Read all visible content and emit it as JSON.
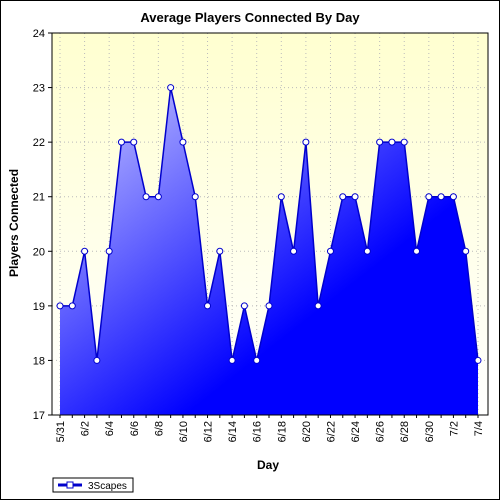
{
  "chart_data": {
    "type": "area",
    "title": "Average Players Connected By Day",
    "xlabel": "Day",
    "ylabel": "Players Connected",
    "ylim": [
      17,
      24
    ],
    "yticks": [
      17,
      18,
      19,
      20,
      21,
      22,
      23,
      24
    ],
    "x_tick_labels": [
      "5/31",
      "6/2",
      "6/4",
      "6/6",
      "6/8",
      "6/10",
      "6/12",
      "6/14",
      "6/16",
      "6/18",
      "6/20",
      "6/22",
      "6/24",
      "6/26",
      "6/28",
      "6/30",
      "7/2",
      "7/4"
    ],
    "grid": true,
    "legend_position": "bottom-left",
    "categories": [
      "5/31",
      "6/1",
      "6/2",
      "6/3",
      "6/4",
      "6/5",
      "6/6",
      "6/7",
      "6/8",
      "6/9",
      "6/10",
      "6/11",
      "6/12",
      "6/13",
      "6/14",
      "6/15",
      "6/16",
      "6/17",
      "6/18",
      "6/19",
      "6/20",
      "6/21",
      "6/22",
      "6/23",
      "6/24",
      "6/25",
      "6/26",
      "6/27",
      "6/28",
      "6/29",
      "6/30",
      "7/1",
      "7/2",
      "7/3",
      "7/4"
    ],
    "series": [
      {
        "name": "3Scapes",
        "values": [
          19,
          19,
          20,
          18,
          20,
          22,
          22,
          21,
          21,
          23,
          22,
          21,
          19,
          20,
          18,
          19,
          18,
          19,
          21,
          20,
          22,
          19,
          20,
          21,
          21,
          20,
          22,
          22,
          22,
          20,
          21,
          21,
          21,
          20,
          18
        ]
      }
    ],
    "colors": {
      "line": "#0000cc",
      "fill_light": "#ccccff",
      "fill_dark": "#0000ff",
      "plot_bg_top": "#ffffd0",
      "plot_bg_bottom": "#ffffff",
      "grid": "#bbbbbb"
    }
  }
}
